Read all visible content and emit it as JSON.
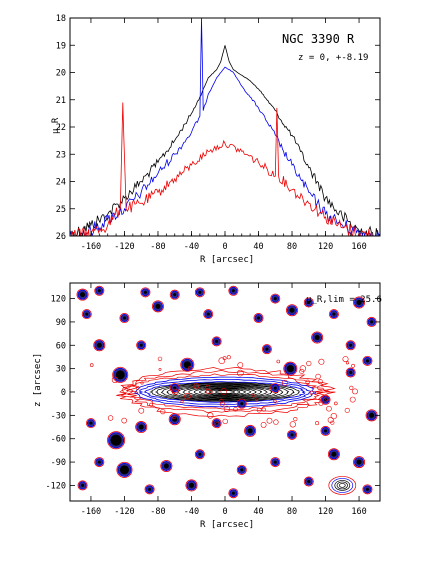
{
  "chart_data": [
    {
      "type": "line",
      "title": "NGC 3390 R",
      "subtitle": "z = 0, +-8.19",
      "xlabel": "R [arcsec]",
      "ylabel": "μ_R",
      "xlim": [
        -185,
        185
      ],
      "ylim": [
        26,
        18
      ],
      "y_inverted": true,
      "xticks": [
        -160,
        -120,
        -80,
        -40,
        0,
        40,
        80,
        120,
        160
      ],
      "yticks": [
        18,
        19,
        20,
        21,
        22,
        23,
        24,
        25,
        26
      ],
      "series": [
        {
          "color": "#000000",
          "x": [
            -185,
            -160,
            -140,
            -120,
            -100,
            -80,
            -60,
            -40,
            -30,
            -20,
            -10,
            -5,
            0,
            5,
            10,
            20,
            30,
            40,
            50,
            60,
            70,
            80,
            90,
            100,
            110,
            120,
            140,
            160,
            185
          ],
          "y": [
            26.0,
            25.6,
            25.2,
            24.6,
            24.0,
            23.3,
            22.5,
            21.5,
            20.9,
            20.2,
            19.9,
            19.6,
            19.0,
            19.6,
            19.9,
            20.1,
            20.3,
            20.6,
            21.0,
            21.4,
            21.9,
            22.3,
            22.9,
            23.5,
            24.0,
            24.6,
            25.3,
            25.8,
            26.0
          ]
        },
        {
          "color": "#0000ee",
          "x": [
            -185,
            -160,
            -140,
            -120,
            -100,
            -80,
            -60,
            -40,
            -30,
            -28,
            -26,
            -20,
            -10,
            0,
            10,
            20,
            30,
            40,
            50,
            60,
            70,
            80,
            90,
            100,
            110,
            120,
            140,
            160,
            185
          ],
          "y": [
            26.0,
            25.8,
            25.4,
            25.0,
            24.4,
            23.7,
            23.0,
            22.2,
            21.6,
            18.0,
            21.4,
            20.8,
            20.2,
            19.8,
            20.0,
            20.5,
            20.9,
            21.3,
            21.8,
            22.3,
            22.9,
            23.4,
            23.9,
            24.4,
            24.8,
            25.2,
            25.6,
            25.9,
            26.0
          ]
        },
        {
          "color": "#ee0000",
          "x": [
            -185,
            -160,
            -140,
            -125,
            -122,
            -118,
            -100,
            -80,
            -60,
            -40,
            -20,
            0,
            20,
            40,
            60,
            62,
            64,
            80,
            100,
            120,
            140,
            160,
            185
          ],
          "y": [
            26.0,
            25.9,
            25.6,
            25.0,
            21.1,
            25.0,
            24.8,
            24.4,
            23.9,
            23.4,
            22.9,
            22.6,
            22.9,
            23.3,
            23.8,
            21.3,
            23.8,
            24.3,
            24.8,
            25.3,
            25.7,
            25.9,
            26.0
          ]
        }
      ]
    },
    {
      "type": "contour",
      "xlabel": "R [arcsec]",
      "ylabel": "z [arcsec]",
      "annotation": "μ_R,lim = 25.6",
      "xlim": [
        -185,
        185
      ],
      "ylim": [
        -140,
        140
      ],
      "xticks": [
        -160,
        -120,
        -80,
        -40,
        0,
        40,
        80,
        120,
        160
      ],
      "yticks": [
        -120,
        -90,
        -60,
        -30,
        0,
        30,
        60,
        90,
        120
      ],
      "contour_colors": [
        "#ee0000",
        "#0000ee",
        "#000000"
      ]
    }
  ],
  "icons": [
    "star-blob"
  ]
}
